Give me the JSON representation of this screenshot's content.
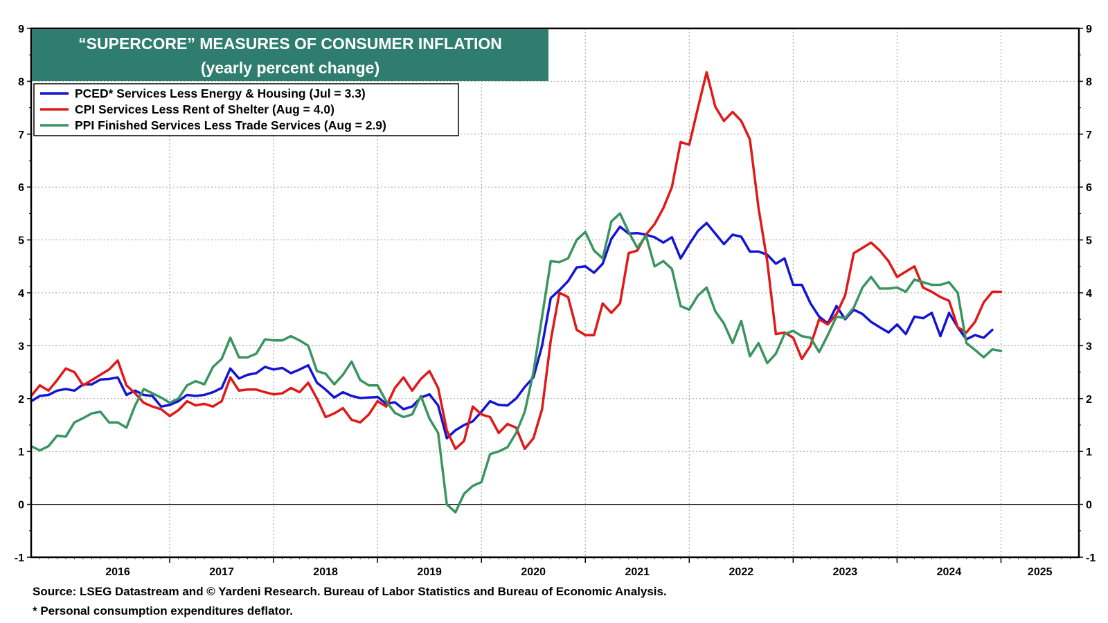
{
  "chart_data": {
    "type": "line",
    "title": "“SUPERCORE” MEASURES OF CONSUMER INFLATION",
    "subtitle": "(yearly percent change)",
    "title_bg_color": "#2e7d6e",
    "ylim": [
      -1,
      9
    ],
    "yticks": [
      -1,
      0,
      1,
      2,
      3,
      4,
      5,
      6,
      7,
      8,
      9
    ],
    "x_start": 2015.667,
    "x_end": 2025.75,
    "x_year_labels": [
      "2016",
      "2017",
      "2018",
      "2019",
      "2020",
      "2021",
      "2022",
      "2023",
      "2024",
      "2025"
    ],
    "grid": true,
    "legend_placement": "top-left",
    "series": [
      {
        "name": "PCED* Services Less Energy & Housing",
        "legend_label": "PCED* Services Less Energy & Housing  (Jul = 3.3)",
        "color": "#1414d2",
        "start": 2015.667,
        "values": [
          1.95,
          2.05,
          2.07,
          2.15,
          2.18,
          2.15,
          2.27,
          2.27,
          2.36,
          2.37,
          2.4,
          2.07,
          2.15,
          2.07,
          2.05,
          1.85,
          1.88,
          1.95,
          2.07,
          2.05,
          2.07,
          2.12,
          2.2,
          2.57,
          2.38,
          2.45,
          2.48,
          2.6,
          2.55,
          2.58,
          2.48,
          2.55,
          2.63,
          2.3,
          2.17,
          2.02,
          2.12,
          2.05,
          2.01,
          2.02,
          2.03,
          1.9,
          1.93,
          1.8,
          1.85,
          2.02,
          2.08,
          1.87,
          1.25,
          1.4,
          1.5,
          1.57,
          1.75,
          1.95,
          1.88,
          1.87,
          2.0,
          2.22,
          2.4,
          3.0,
          3.9,
          4.05,
          4.22,
          4.48,
          4.5,
          4.38,
          4.55,
          5.02,
          5.25,
          5.12,
          5.13,
          5.1,
          5.05,
          4.95,
          5.05,
          4.65,
          4.92,
          5.17,
          5.32,
          5.12,
          4.92,
          5.1,
          5.06,
          4.78,
          4.78,
          4.72,
          4.55,
          4.65,
          4.15,
          4.15,
          3.8,
          3.55,
          3.42,
          3.75,
          3.5,
          3.68,
          3.6,
          3.45,
          3.35,
          3.25,
          3.4,
          3.22,
          3.55,
          3.52,
          3.62,
          3.18,
          3.62,
          3.35,
          3.12,
          3.2,
          3.15,
          3.3
        ]
      },
      {
        "name": "CPI Services Less Rent of Shelter",
        "legend_label": "CPI Services Less Rent of Shelter  (Aug = 4.0)",
        "color": "#e01818",
        "start": 2015.667,
        "values": [
          2.05,
          2.25,
          2.15,
          2.35,
          2.57,
          2.5,
          2.25,
          2.35,
          2.45,
          2.55,
          2.72,
          2.25,
          2.1,
          1.92,
          1.85,
          1.8,
          1.67,
          1.78,
          1.95,
          1.87,
          1.9,
          1.85,
          1.95,
          2.4,
          2.15,
          2.17,
          2.17,
          2.12,
          2.08,
          2.1,
          2.2,
          2.12,
          2.3,
          2.0,
          1.65,
          1.72,
          1.82,
          1.6,
          1.55,
          1.7,
          1.95,
          1.85,
          2.2,
          2.4,
          2.15,
          2.37,
          2.52,
          2.2,
          1.4,
          1.05,
          1.2,
          1.85,
          1.7,
          1.65,
          1.35,
          1.52,
          1.45,
          1.05,
          1.25,
          1.8,
          3.1,
          4.0,
          3.92,
          3.3,
          3.2,
          3.2,
          3.8,
          3.62,
          3.8,
          4.75,
          4.8,
          5.1,
          5.3,
          5.6,
          6.0,
          6.85,
          6.8,
          7.5,
          8.17,
          7.52,
          7.25,
          7.42,
          7.25,
          6.9,
          5.6,
          4.6,
          3.22,
          3.25,
          3.15,
          2.75,
          3.0,
          3.5,
          3.4,
          3.6,
          3.95,
          4.75,
          4.85,
          4.95,
          4.8,
          4.6,
          4.3,
          4.4,
          4.5,
          4.1,
          4.02,
          3.92,
          3.85,
          3.35,
          3.25,
          3.45,
          3.82,
          4.02,
          4.02
        ]
      },
      {
        "name": "PPI Finished Services Less Trade Services",
        "legend_label": "PPI Finished Services Less Trade Services (Aug = 2.9)",
        "color": "#3a9460",
        "start": 2015.667,
        "values": [
          1.1,
          1.02,
          1.1,
          1.3,
          1.28,
          1.55,
          1.63,
          1.72,
          1.75,
          1.55,
          1.55,
          1.45,
          1.87,
          2.18,
          2.1,
          2.02,
          1.92,
          2.0,
          2.25,
          2.33,
          2.27,
          2.6,
          2.75,
          3.15,
          2.78,
          2.78,
          2.85,
          3.12,
          3.1,
          3.1,
          3.18,
          3.1,
          3.0,
          2.52,
          2.47,
          2.27,
          2.45,
          2.7,
          2.35,
          2.25,
          2.25,
          1.95,
          1.73,
          1.65,
          1.7,
          2.05,
          1.62,
          1.35,
          0.0,
          -0.15,
          0.2,
          0.35,
          0.42,
          0.95,
          1.0,
          1.08,
          1.35,
          1.75,
          2.5,
          3.55,
          4.6,
          4.58,
          4.65,
          5.0,
          5.15,
          4.8,
          4.65,
          5.35,
          5.5,
          5.15,
          4.85,
          5.08,
          4.5,
          4.6,
          4.45,
          3.75,
          3.68,
          3.95,
          4.1,
          3.65,
          3.42,
          3.05,
          3.47,
          2.8,
          3.05,
          2.67,
          2.85,
          3.22,
          3.28,
          3.18,
          3.15,
          2.88,
          3.2,
          3.55,
          3.52,
          3.72,
          4.1,
          4.3,
          4.08,
          4.08,
          4.1,
          4.02,
          4.25,
          4.2,
          4.15,
          4.15,
          4.2,
          4.0,
          3.05,
          2.92,
          2.78,
          2.93,
          2.9
        ]
      }
    ],
    "source_note": "Source: LSEG Datastream and © Yardeni Research. Bureau of Labor Statistics and Bureau of Economic Analysis.",
    "footnote": "* Personal consumption expenditures deflator."
  }
}
